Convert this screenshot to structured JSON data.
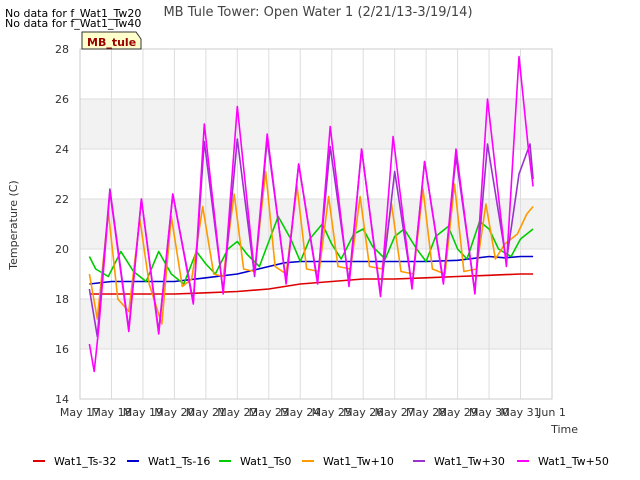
{
  "notices": [
    "No data for f_Wat1_Tw20",
    "No data for f_Wat1_Tw40"
  ],
  "badge": "MB_tule",
  "chart_data": {
    "type": "line",
    "title": "MB Tule Tower: Open Water 1 (2/21/13-3/19/14)",
    "xlabel": "Time",
    "ylabel": "Temperature (C)",
    "ylim": [
      14,
      28
    ],
    "yticks": [
      14,
      16,
      18,
      20,
      22,
      24,
      26,
      28
    ],
    "xlim": [
      0,
      15
    ],
    "xtick_labels": [
      "May 17",
      "May 18",
      "May 19",
      "May 20",
      "May 21",
      "May 22",
      "May 23",
      "May 24",
      "May 25",
      "May 26",
      "May 27",
      "May 28",
      "May 29",
      "May 30",
      "May 31",
      "Jun 1"
    ],
    "grid": true,
    "legend_position": "bottom",
    "series": [
      {
        "name": "Wat1_Ts-32",
        "color": "#dd0000",
        "x": [
          0.3,
          1,
          2,
          3,
          4,
          5,
          6,
          7,
          8,
          9,
          10,
          11,
          12,
          13,
          14,
          14.4
        ],
        "y": [
          18.2,
          18.2,
          18.2,
          18.2,
          18.25,
          18.3,
          18.4,
          18.6,
          18.7,
          18.8,
          18.8,
          18.85,
          18.9,
          18.95,
          19.0,
          19.0
        ]
      },
      {
        "name": "Wat1_Ts-16",
        "color": "#0000cc",
        "x": [
          0.3,
          1,
          2,
          3,
          4,
          5,
          6,
          6.5,
          7,
          8,
          9,
          10,
          11,
          12,
          13,
          13.5,
          14,
          14.4
        ],
        "y": [
          18.6,
          18.7,
          18.7,
          18.7,
          18.85,
          19.0,
          19.3,
          19.45,
          19.5,
          19.5,
          19.5,
          19.5,
          19.5,
          19.55,
          19.7,
          19.65,
          19.7,
          19.7
        ]
      },
      {
        "name": "Wat1_Ts0",
        "color": "#00cc00",
        "x": [
          0.3,
          0.5,
          0.9,
          1.3,
          1.7,
          2.1,
          2.5,
          2.9,
          3.3,
          3.7,
          4.0,
          4.3,
          4.7,
          5.0,
          5.3,
          5.7,
          6.0,
          6.3,
          6.7,
          7.0,
          7.3,
          7.7,
          8.0,
          8.3,
          8.7,
          9.0,
          9.3,
          9.7,
          10.0,
          10.3,
          10.7,
          11.0,
          11.3,
          11.7,
          12.0,
          12.3,
          12.7,
          13.0,
          13.3,
          13.7,
          14.0,
          14.4
        ],
        "y": [
          19.7,
          19.2,
          18.9,
          19.9,
          19.1,
          18.7,
          19.9,
          19.0,
          18.6,
          19.9,
          19.4,
          19.0,
          20.0,
          20.3,
          19.8,
          19.3,
          20.3,
          21.3,
          20.4,
          19.5,
          20.4,
          21.0,
          20.2,
          19.6,
          20.6,
          20.8,
          20.1,
          19.6,
          20.5,
          20.8,
          20.0,
          19.5,
          20.5,
          20.9,
          20.0,
          19.6,
          21.1,
          20.8,
          20.0,
          19.7,
          20.4,
          20.8
        ]
      },
      {
        "name": "Wat1_Tw+10",
        "color": "#ff9900",
        "x": [
          0.3,
          0.55,
          0.9,
          1.2,
          1.55,
          1.9,
          2.2,
          2.6,
          2.9,
          3.25,
          3.55,
          3.9,
          4.25,
          4.55,
          4.9,
          5.2,
          5.55,
          5.9,
          6.2,
          6.55,
          6.9,
          7.2,
          7.6,
          7.9,
          8.2,
          8.6,
          8.9,
          9.2,
          9.6,
          9.9,
          10.2,
          10.6,
          10.9,
          11.2,
          11.6,
          11.9,
          12.2,
          12.6,
          12.9,
          13.2,
          13.5,
          13.9,
          14.2,
          14.4
        ],
        "y": [
          19.0,
          17.2,
          21.5,
          18.0,
          17.5,
          21.2,
          18.6,
          17.0,
          21.3,
          18.5,
          18.8,
          21.7,
          19.0,
          18.9,
          22.2,
          19.2,
          19.1,
          23.1,
          19.3,
          19.0,
          22.5,
          19.2,
          19.1,
          22.1,
          19.3,
          19.2,
          22.1,
          19.3,
          19.2,
          21.8,
          19.1,
          19.0,
          22.4,
          19.2,
          19.0,
          22.6,
          19.1,
          19.2,
          21.8,
          19.6,
          20.2,
          20.6,
          21.4,
          21.7
        ]
      },
      {
        "name": "Wat1_Tw+30",
        "color": "#9933cc",
        "x": [
          0.3,
          0.55,
          0.95,
          1.55,
          1.95,
          2.5,
          2.95,
          3.6,
          3.95,
          4.55,
          5.0,
          5.55,
          5.95,
          6.55,
          6.95,
          7.55,
          7.95,
          8.55,
          8.95,
          9.55,
          10.0,
          10.55,
          10.95,
          11.55,
          11.95,
          12.55,
          12.95,
          13.55,
          13.95,
          14.3,
          14.4
        ],
        "y": [
          18.4,
          16.5,
          22.4,
          16.8,
          22.0,
          16.7,
          22.2,
          17.9,
          24.3,
          18.3,
          24.4,
          18.9,
          24.4,
          18.7,
          23.4,
          18.7,
          24.1,
          18.7,
          24.0,
          18.2,
          23.1,
          18.5,
          23.5,
          18.7,
          23.7,
          18.3,
          24.2,
          19.5,
          23.0,
          24.2,
          22.8
        ]
      },
      {
        "name": "Wat1_Tw+50",
        "color": "#ff00ff",
        "x": [
          0.3,
          0.45,
          0.6,
          0.95,
          1.55,
          1.95,
          2.5,
          2.95,
          3.6,
          3.95,
          4.55,
          5.0,
          5.55,
          5.95,
          6.55,
          6.95,
          7.55,
          7.95,
          8.55,
          8.95,
          9.55,
          9.95,
          10.55,
          10.95,
          11.55,
          11.95,
          12.55,
          12.95,
          13.55,
          13.95,
          14.25,
          14.4
        ],
        "y": [
          16.2,
          15.1,
          16.9,
          22.3,
          16.7,
          22.0,
          16.6,
          22.2,
          17.8,
          25.0,
          18.2,
          25.7,
          19.0,
          24.6,
          18.6,
          23.4,
          18.6,
          24.9,
          18.5,
          24.0,
          18.1,
          24.5,
          18.4,
          23.5,
          18.6,
          24.0,
          18.2,
          26.0,
          19.3,
          27.7,
          24.0,
          22.5
        ]
      }
    ]
  }
}
